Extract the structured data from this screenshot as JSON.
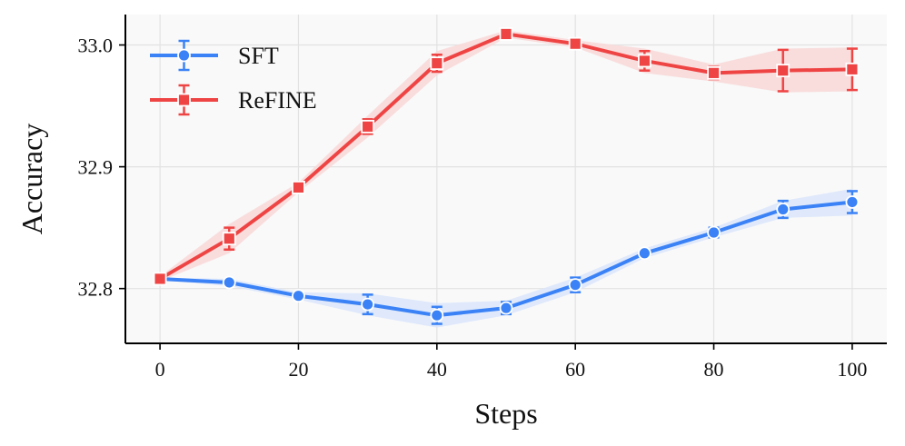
{
  "chart_data": {
    "type": "line",
    "title": "",
    "xlabel": "Steps",
    "ylabel": "Accuracy",
    "x": [
      0,
      10,
      20,
      30,
      40,
      50,
      60,
      70,
      80,
      90,
      100
    ],
    "xlim": [
      -5,
      105
    ],
    "ylim": [
      32.755,
      33.025
    ],
    "xticks": [
      0,
      20,
      40,
      60,
      80,
      100
    ],
    "yticks": [
      32.8,
      32.9,
      33.0
    ],
    "xtick_labels": [
      "0",
      "20",
      "40",
      "60",
      "80",
      "100"
    ],
    "ytick_labels": [
      "32.8",
      "32.9",
      "33.0"
    ],
    "grid": true,
    "legend_position": "top-left",
    "series": [
      {
        "name": "SFT",
        "color": "#3b82f6",
        "band_color": "#dbe6fb",
        "marker": "circle",
        "values": [
          32.808,
          32.805,
          32.794,
          32.787,
          32.778,
          32.784,
          32.803,
          32.829,
          32.846,
          32.865,
          32.871
        ],
        "err": [
          0.001,
          0.002,
          0.002,
          0.008,
          0.007,
          0.005,
          0.006,
          0.002,
          0.004,
          0.007,
          0.009
        ],
        "band": [
          0.001,
          0.003,
          0.003,
          0.009,
          0.01,
          0.006,
          0.006,
          0.004,
          0.004,
          0.007,
          0.011
        ]
      },
      {
        "name": "ReFINE",
        "color": "#ef4444",
        "band_color": "#f9d8d8",
        "marker": "square",
        "values": [
          32.808,
          32.841,
          32.883,
          32.933,
          32.985,
          33.009,
          33.001,
          32.987,
          32.977,
          32.979,
          32.98
        ],
        "err": [
          0.001,
          0.009,
          0.002,
          0.006,
          0.007,
          0.002,
          0.002,
          0.008,
          0.005,
          0.017,
          0.017
        ],
        "band": [
          0.002,
          0.012,
          0.004,
          0.009,
          0.01,
          0.003,
          0.003,
          0.01,
          0.007,
          0.018,
          0.018
        ]
      }
    ]
  }
}
